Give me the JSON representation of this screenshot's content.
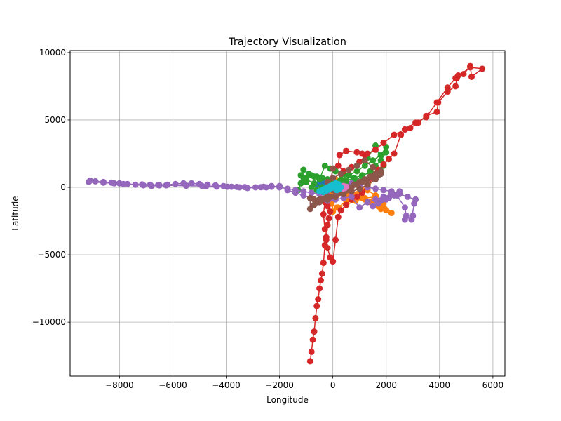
{
  "chart_data": {
    "type": "line",
    "title": "Trajectory Visualization",
    "xlabel": "Longitude",
    "ylabel": "Latitude",
    "xlim": [
      -9850,
      6450
    ],
    "ylim": [
      -14000,
      10150
    ],
    "xticks": [
      -8000,
      -6000,
      -4000,
      -2000,
      0,
      2000,
      4000,
      6000
    ],
    "xtick_labels": [
      "−8000",
      "−6000",
      "−4000",
      "−2000",
      "0",
      "2000",
      "4000",
      "6000"
    ],
    "yticks": [
      -10000,
      -5000,
      0,
      5000,
      10000
    ],
    "ytick_labels": [
      "−10000",
      "−5000",
      "0",
      "5000",
      "10000"
    ],
    "grid": true,
    "markers": true,
    "series": [
      {
        "color": "#1f77b4",
        "x": [
          -600,
          -500,
          -300,
          -150,
          -50,
          50,
          150,
          250,
          300,
          200,
          100,
          0,
          -100,
          -200,
          -300,
          -350,
          -250,
          -100
        ],
        "y": [
          200,
          300,
          400,
          200,
          0,
          100,
          200,
          300,
          150,
          0,
          -100,
          -50,
          50,
          150,
          100,
          -100,
          -300,
          -200
        ]
      },
      {
        "color": "#ff7f0e",
        "x": [
          -50,
          200,
          600,
          900,
          1200,
          1500,
          1800,
          2000,
          1700,
          1400,
          1100,
          800,
          500,
          200,
          0,
          -100,
          -50,
          150,
          500,
          850,
          1200,
          1600,
          1900,
          2200,
          1900,
          1600,
          1300,
          1000,
          700,
          400,
          100,
          -50,
          0,
          200,
          500,
          900,
          1300,
          1700
        ],
        "y": [
          -200,
          -500,
          -700,
          -800,
          -900,
          -1000,
          -1600,
          -1700,
          -1400,
          -1100,
          -800,
          -600,
          -400,
          -300,
          -500,
          -800,
          -1200,
          -1500,
          -1300,
          -1000,
          -800,
          -700,
          -1500,
          -1900,
          -1200,
          -600,
          -200,
          100,
          300,
          500,
          600,
          400,
          -1800,
          -1500,
          -1000,
          -500,
          0,
          1000
        ]
      },
      {
        "color": "#2ca02c",
        "x": [
          -1300,
          -1200,
          -1000,
          -800,
          -600,
          -400,
          -200,
          0,
          200,
          500,
          800,
          1100,
          1400,
          1600,
          1800,
          2000,
          2000,
          1800,
          1500,
          1200,
          900,
          600,
          300,
          0,
          -200,
          -400,
          -600,
          -800,
          -1000,
          -1200,
          -1100,
          -900,
          -700,
          -500,
          -300,
          -100,
          100,
          400,
          700,
          1000,
          1300,
          1600,
          1900,
          1700,
          1400,
          1100,
          800,
          500,
          200,
          -100,
          -400,
          -700,
          -1000,
          -1100
        ],
        "y": [
          -200,
          300,
          700,
          900,
          800,
          700,
          600,
          500,
          400,
          300,
          500,
          800,
          1200,
          1600,
          2000,
          2600,
          3000,
          2400,
          2000,
          1600,
          1200,
          900,
          600,
          300,
          100,
          -100,
          -200,
          0,
          400,
          900,
          1300,
          1000,
          800,
          600,
          1600,
          1400,
          1200,
          1000,
          1500,
          1900,
          2200,
          3100,
          1600,
          1300,
          1100,
          900,
          700,
          500,
          300,
          100,
          0,
          300,
          600,
          700
        ]
      },
      {
        "color": "#d62728",
        "x": [
          -850,
          -800,
          -750,
          -700,
          -650,
          -600,
          -550,
          -500,
          -450,
          -400,
          -350,
          -300,
          -250,
          -200,
          -150,
          -100,
          -200,
          -300,
          -350,
          -300,
          -250,
          -200,
          -100,
          0,
          100,
          200,
          300,
          500,
          700,
          900,
          1100,
          1300,
          1500,
          1700,
          1900,
          2100,
          2300,
          2550,
          2700,
          2900,
          3200,
          3500,
          3900,
          3950,
          4300,
          4600,
          4650,
          4700,
          4900,
          5150,
          5200,
          5600,
          5150,
          4600,
          4300,
          3900,
          3500,
          3100,
          2700,
          2300,
          1900,
          1600,
          1300,
          1000,
          700,
          400,
          200,
          250,
          500,
          900,
          1100,
          1200
        ],
        "y": [
          -12900,
          -12200,
          -11300,
          -10700,
          -9700,
          -8800,
          -8300,
          -7500,
          -6900,
          -6400,
          -5600,
          -4300,
          -3700,
          -2800,
          -2300,
          -1800,
          -1400,
          -1100,
          -2000,
          -3100,
          -3900,
          -4500,
          -5200,
          -5500,
          -3900,
          -2200,
          -1700,
          -1300,
          -900,
          -700,
          -400,
          100,
          700,
          1300,
          1700,
          2100,
          2500,
          3900,
          4300,
          4400,
          4800,
          5300,
          5600,
          6300,
          7100,
          7500,
          8100,
          8300,
          8400,
          9000,
          8200,
          8800,
          8900,
          8100,
          7400,
          6300,
          5200,
          4800,
          4300,
          3900,
          3300,
          2800,
          2500,
          1900,
          1500,
          1200,
          1600,
          2400,
          2700,
          2600,
          2500,
          2400
        ]
      },
      {
        "color": "#9467bd",
        "x": [
          -9150,
          -8600,
          -8200,
          -7850,
          -7150,
          -6850,
          -6550,
          -6250,
          -5500,
          -4900,
          -4750,
          -4350,
          -3950,
          -3600,
          -3300,
          -2700,
          -2500,
          -2300,
          -2000,
          -1700,
          -1400,
          -1100,
          -800,
          -500,
          -200,
          100,
          400,
          700,
          1000,
          1300,
          1600,
          1900,
          2200,
          2500,
          2300,
          2000,
          1700,
          1500,
          1800,
          2100,
          2400,
          2700,
          2750,
          2700,
          3000,
          2950,
          3050,
          3100,
          2800,
          2500,
          2200,
          1900,
          1600,
          1300,
          1000,
          700,
          400,
          100,
          -200,
          -500,
          -800,
          -1100,
          -1400,
          -1700,
          -2000,
          -2300,
          -2600,
          -2900,
          -3200,
          -3500,
          -3800,
          -4100,
          -4400,
          -4700,
          -5000,
          -5300,
          -5600,
          -5900,
          -6200,
          -6500,
          -6800,
          -7100,
          -7400,
          -7700,
          -8000,
          -8300,
          -8600,
          -8900,
          -9100
        ],
        "y": [
          400,
          350,
          300,
          250,
          220,
          200,
          180,
          150,
          120,
          100,
          80,
          60,
          50,
          30,
          20,
          10,
          0,
          50,
          100,
          -200,
          -400,
          -600,
          -800,
          -900,
          -1000,
          -900,
          -800,
          -700,
          -1500,
          -1100,
          -900,
          -700,
          -500,
          -300,
          -600,
          -900,
          -1200,
          -1400,
          -1000,
          -800,
          -600,
          -1500,
          -2100,
          -2400,
          -2100,
          -2400,
          -1200,
          -900,
          -700,
          -500,
          -300,
          -200,
          -100,
          0,
          100,
          300,
          100,
          -100,
          -300,
          -500,
          -400,
          -300,
          -200,
          -100,
          0,
          100,
          50,
          0,
          -50,
          0,
          50,
          100,
          150,
          200,
          250,
          300,
          300,
          250,
          200,
          150,
          100,
          150,
          200,
          250,
          300,
          350,
          400,
          450,
          500
        ]
      },
      {
        "color": "#8c564b",
        "x": [
          -850,
          -850,
          -700,
          -500,
          -300,
          -100,
          100,
          300,
          500,
          700,
          900,
          1100,
          1300,
          1500,
          1700,
          1800,
          1600,
          1400,
          1200,
          1000,
          800,
          600,
          400,
          200,
          0,
          -100,
          -200,
          0,
          300,
          600,
          900,
          1200,
          1500,
          1800,
          1600,
          1300,
          1000,
          700,
          400,
          100,
          -200,
          -500,
          -700,
          -600,
          -400,
          -200,
          0
        ],
        "y": [
          -1600,
          -800,
          -900,
          -900,
          -800,
          -700,
          -600,
          -400,
          -200,
          0,
          200,
          400,
          600,
          800,
          900,
          1200,
          1000,
          800,
          600,
          400,
          200,
          0,
          -200,
          -400,
          -200,
          100,
          400,
          700,
          1000,
          1300,
          1600,
          2000,
          1500,
          1000,
          600,
          200,
          -100,
          -300,
          -500,
          -700,
          -900,
          -1100,
          -1300,
          -1100,
          -900,
          -700,
          1400
        ]
      },
      {
        "color": "#e377c2",
        "x": [
          350,
          400,
          500,
          450,
          380
        ],
        "y": [
          0,
          100,
          50,
          -50,
          -100
        ]
      },
      {
        "color": "#17becf",
        "x": [
          -500,
          -400,
          -300,
          -200,
          -100,
          0,
          100,
          200,
          150,
          50,
          -50,
          -150,
          -250,
          -350,
          -400,
          -300,
          -200,
          -100,
          0,
          100,
          200,
          300,
          250,
          150
        ],
        "y": [
          -300,
          -200,
          -100,
          0,
          100,
          200,
          300,
          250,
          150,
          50,
          -50,
          -150,
          -250,
          -350,
          -300,
          -200,
          -100,
          0,
          100,
          200,
          100,
          0,
          -100,
          -200
        ]
      }
    ]
  }
}
